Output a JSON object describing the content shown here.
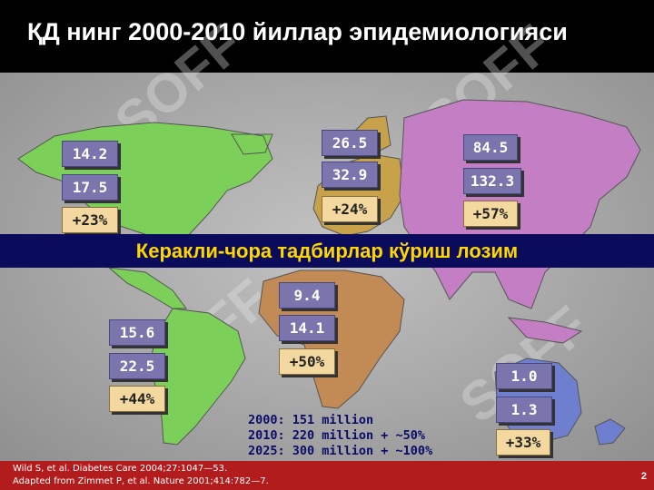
{
  "title": "ҚД нинг 2000-2010 йиллар эпидемиологияси",
  "banner": "Керакли-чора тадбирлар кўриш лозим",
  "watermark": "SOFF",
  "regions": {
    "north_america": {
      "v2000": "14.2",
      "v2010": "17.5",
      "change": "+23%",
      "color": "#7cd05a"
    },
    "europe": {
      "v2000": "26.5",
      "v2010": "32.9",
      "change": "+24%",
      "color": "#c8a24a"
    },
    "asia": {
      "v2000": "84.5",
      "v2010": "132.3",
      "change": "+57%",
      "color": "#c47fc4"
    },
    "africa": {
      "v2000": "9.4",
      "v2010": "14.1",
      "change": "+50%",
      "color": "#c28a54"
    },
    "south_america": {
      "v2000": "15.6",
      "v2010": "22.5",
      "change": "+44%",
      "color": "#7cd05a"
    },
    "australia": {
      "v2000": "1.0",
      "v2010": "1.3",
      "change": "+33%",
      "color": "#6f7fd0"
    }
  },
  "totals": [
    "2000: 151 million",
    "2010: 220 million + ~50%",
    "2025: 300 million + ~100%"
  ],
  "references": [
    "Wild S, et al. Diabetes Care 2004;27:1047—53.",
    "Adapted from Zimmet P, et al. Nature 2001;414:782—7."
  ],
  "page_number": "2"
}
